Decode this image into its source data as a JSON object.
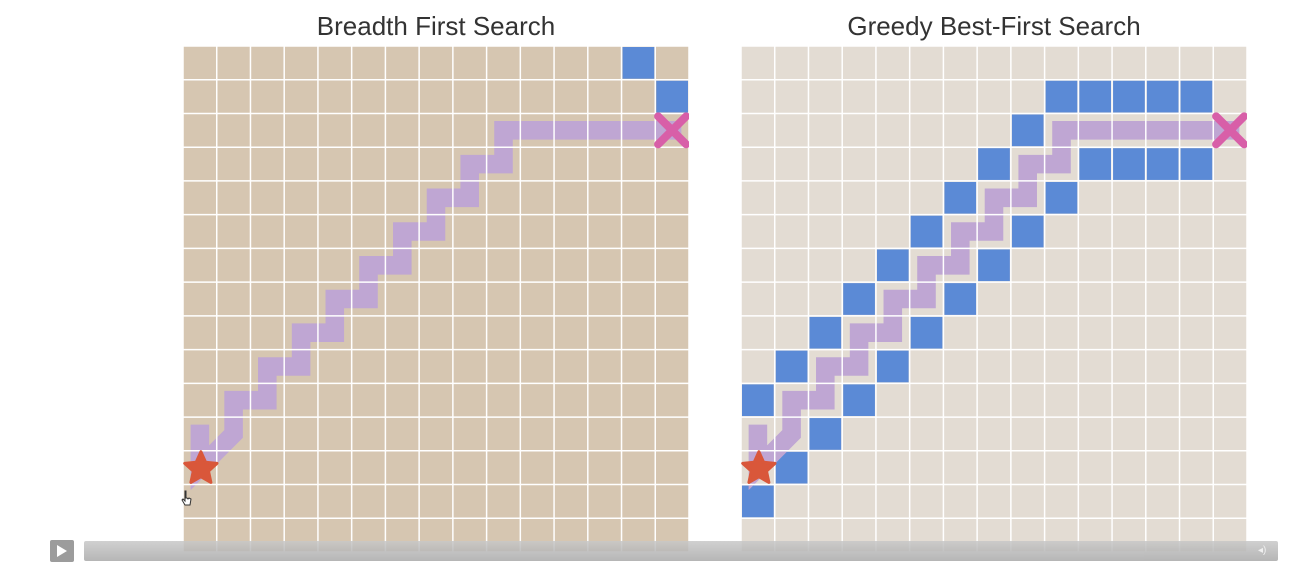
{
  "panels": [
    {
      "title": "Breadth First Search",
      "background": "#d6c6b1",
      "explored": [
        [
          13,
          0
        ],
        [
          14,
          1
        ]
      ],
      "path": [
        [
          0,
          11
        ],
        [
          0,
          12
        ],
        [
          1,
          11
        ],
        [
          1,
          10
        ],
        [
          2,
          10
        ],
        [
          2,
          9
        ],
        [
          3,
          9
        ],
        [
          3,
          8
        ],
        [
          4,
          8
        ],
        [
          4,
          7
        ],
        [
          5,
          7
        ],
        [
          5,
          6
        ],
        [
          6,
          6
        ],
        [
          6,
          5
        ],
        [
          7,
          5
        ],
        [
          7,
          4
        ],
        [
          8,
          4
        ],
        [
          8,
          3
        ],
        [
          9,
          3
        ],
        [
          9,
          2
        ],
        [
          10,
          2
        ],
        [
          11,
          2
        ],
        [
          12,
          2
        ],
        [
          13,
          2
        ],
        [
          14,
          2
        ]
      ]
    },
    {
      "title": "Greedy Best-First Search",
      "background": "#e3dcd3",
      "explored": [
        [
          9,
          1
        ],
        [
          10,
          1
        ],
        [
          11,
          1
        ],
        [
          12,
          1
        ],
        [
          13,
          1
        ],
        [
          8,
          2
        ],
        [
          7,
          3
        ],
        [
          10,
          3
        ],
        [
          11,
          3
        ],
        [
          12,
          3
        ],
        [
          13,
          3
        ],
        [
          6,
          4
        ],
        [
          9,
          4
        ],
        [
          5,
          5
        ],
        [
          8,
          5
        ],
        [
          4,
          6
        ],
        [
          7,
          6
        ],
        [
          3,
          7
        ],
        [
          6,
          7
        ],
        [
          2,
          8
        ],
        [
          5,
          8
        ],
        [
          1,
          9
        ],
        [
          4,
          9
        ],
        [
          0,
          10
        ],
        [
          3,
          10
        ],
        [
          2,
          11
        ],
        [
          1,
          12
        ],
        [
          0,
          13
        ]
      ],
      "path": [
        [
          0,
          11
        ],
        [
          0,
          12
        ],
        [
          1,
          11
        ],
        [
          1,
          10
        ],
        [
          2,
          10
        ],
        [
          2,
          9
        ],
        [
          3,
          9
        ],
        [
          3,
          8
        ],
        [
          4,
          8
        ],
        [
          4,
          7
        ],
        [
          5,
          7
        ],
        [
          5,
          6
        ],
        [
          6,
          6
        ],
        [
          6,
          5
        ],
        [
          7,
          5
        ],
        [
          7,
          4
        ],
        [
          8,
          4
        ],
        [
          8,
          3
        ],
        [
          9,
          3
        ],
        [
          9,
          2
        ],
        [
          10,
          2
        ],
        [
          11,
          2
        ],
        [
          12,
          2
        ],
        [
          13,
          2
        ],
        [
          14,
          2
        ]
      ]
    }
  ],
  "colors": {
    "explored": "#5b8ad6",
    "path": "#bfa6d3",
    "start": "#d9573a",
    "goal": "#d85fa8",
    "gridline": "#ffffff"
  },
  "grid": {
    "cols": 15,
    "rows": 15
  },
  "start_cell": [
    0,
    12
  ],
  "goal_cell": [
    14,
    2
  ],
  "icons": {
    "start": "star-icon",
    "goal": "x-icon",
    "play": "play-icon",
    "volume": "volume-icon",
    "cursor": "pointer-cursor-icon"
  },
  "player": {
    "progress": 0.0
  }
}
